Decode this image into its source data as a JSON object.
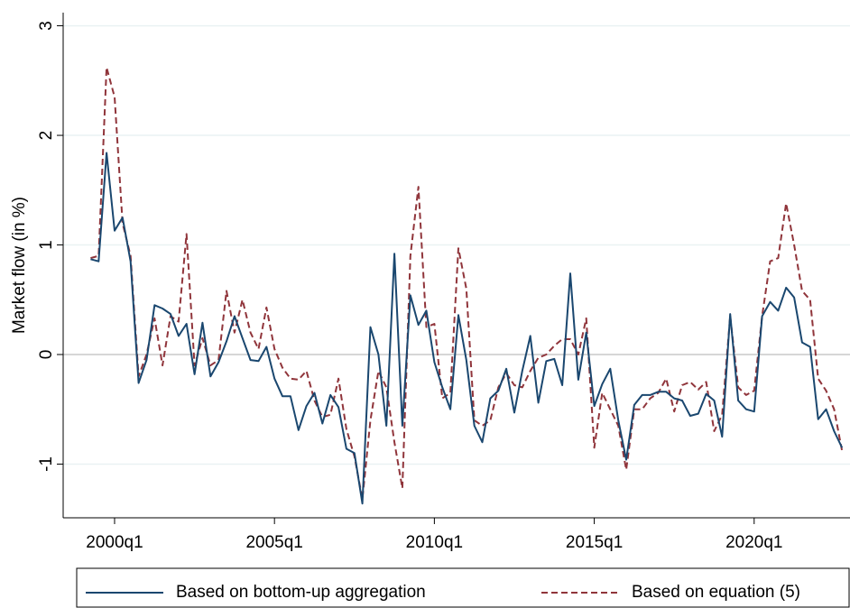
{
  "chart_data": {
    "type": "line",
    "y_label": "Market flow (in %)",
    "x": [
      "1999q2",
      "1999q3",
      "1999q4",
      "2000q1",
      "2000q2",
      "2000q3",
      "2000q4",
      "2001q1",
      "2001q2",
      "2001q3",
      "2001q4",
      "2002q1",
      "2002q2",
      "2002q3",
      "2002q4",
      "2003q1",
      "2003q2",
      "2003q3",
      "2003q4",
      "2004q1",
      "2004q2",
      "2004q3",
      "2004q4",
      "2005q1",
      "2005q2",
      "2005q3",
      "2005q4",
      "2006q1",
      "2006q2",
      "2006q3",
      "2006q4",
      "2007q1",
      "2007q2",
      "2007q3",
      "2007q4",
      "2008q1",
      "2008q2",
      "2008q3",
      "2008q4",
      "2009q1",
      "2009q2",
      "2009q3",
      "2009q4",
      "2010q1",
      "2010q2",
      "2010q3",
      "2010q4",
      "2011q1",
      "2011q2",
      "2011q3",
      "2011q4",
      "2012q1",
      "2012q2",
      "2012q3",
      "2012q4",
      "2013q1",
      "2013q2",
      "2013q3",
      "2013q4",
      "2014q1",
      "2014q2",
      "2014q3",
      "2014q4",
      "2015q1",
      "2015q2",
      "2015q3",
      "2015q4",
      "2016q1",
      "2016q2",
      "2016q3",
      "2016q4",
      "2017q1",
      "2017q2",
      "2017q3",
      "2017q4",
      "2018q1",
      "2018q2",
      "2018q3",
      "2018q4",
      "2019q1",
      "2019q2",
      "2019q3",
      "2019q4",
      "2020q1",
      "2020q2",
      "2020q3",
      "2020q4",
      "2021q1",
      "2021q2",
      "2021q3",
      "2021q4",
      "2022q1",
      "2022q2",
      "2022q3",
      "2022q4"
    ],
    "series": [
      {
        "name": "Based on bottom-up aggregation",
        "color": "#1a476f",
        "dash": false,
        "values": [
          0.87,
          0.85,
          1.84,
          1.13,
          1.25,
          0.85,
          -0.26,
          -0.05,
          0.45,
          0.42,
          0.37,
          0.17,
          0.28,
          -0.18,
          0.29,
          -0.2,
          -0.07,
          0.12,
          0.35,
          0.15,
          -0.05,
          -0.06,
          0.07,
          -0.22,
          -0.38,
          -0.38,
          -0.69,
          -0.47,
          -0.35,
          -0.63,
          -0.37,
          -0.48,
          -0.86,
          -0.9,
          -1.36,
          0.25,
          0.0,
          -0.65,
          0.92,
          -0.65,
          0.54,
          0.27,
          0.4,
          -0.07,
          -0.3,
          -0.5,
          0.36,
          -0.05,
          -0.65,
          -0.8,
          -0.4,
          -0.33,
          -0.13,
          -0.53,
          -0.15,
          0.17,
          -0.44,
          -0.06,
          -0.04,
          -0.28,
          0.74,
          -0.23,
          0.2,
          -0.47,
          -0.27,
          -0.13,
          -0.6,
          -0.96,
          -0.46,
          -0.37,
          -0.37,
          -0.34,
          -0.34,
          -0.4,
          -0.42,
          -0.56,
          -0.54,
          -0.36,
          -0.42,
          -0.75,
          0.37,
          -0.42,
          -0.5,
          -0.52,
          0.35,
          0.48,
          0.4,
          0.61,
          0.52,
          0.11,
          0.07,
          -0.59,
          -0.5,
          -0.7,
          -0.85
        ]
      },
      {
        "name": "Based on equation (5)",
        "color": "#90353b",
        "dash": true,
        "values": [
          0.88,
          0.9,
          2.62,
          2.35,
          1.2,
          0.9,
          -0.2,
          0.0,
          0.33,
          -0.1,
          0.35,
          0.3,
          1.1,
          -0.1,
          0.15,
          -0.1,
          -0.05,
          0.58,
          0.2,
          0.5,
          0.2,
          0.05,
          0.43,
          0.05,
          -0.12,
          -0.22,
          -0.23,
          -0.15,
          -0.42,
          -0.57,
          -0.55,
          -0.22,
          -0.68,
          -0.93,
          -1.32,
          -0.6,
          -0.15,
          -0.3,
          -0.8,
          -1.22,
          0.9,
          1.53,
          0.25,
          0.28,
          -0.4,
          -0.35,
          0.97,
          0.6,
          -0.6,
          -0.65,
          -0.6,
          -0.3,
          -0.17,
          -0.28,
          -0.3,
          -0.15,
          -0.03,
          0.0,
          0.08,
          0.14,
          0.14,
          0.0,
          0.33,
          -0.85,
          -0.35,
          -0.5,
          -0.65,
          -1.05,
          -0.5,
          -0.5,
          -0.4,
          -0.35,
          -0.22,
          -0.52,
          -0.28,
          -0.25,
          -0.32,
          -0.25,
          -0.7,
          -0.55,
          0.35,
          -0.3,
          -0.37,
          -0.33,
          0.35,
          0.85,
          0.88,
          1.38,
          1.0,
          0.58,
          0.5,
          -0.22,
          -0.33,
          -0.5,
          -0.88
        ]
      }
    ],
    "xticks": [
      "2000q1",
      "2005q1",
      "2010q1",
      "2015q1",
      "2020q1"
    ],
    "ylim": [
      -1.49,
      3.12
    ],
    "yticks": [
      -1,
      0,
      1,
      2,
      3
    ],
    "grid": true,
    "legend": "bottom"
  }
}
